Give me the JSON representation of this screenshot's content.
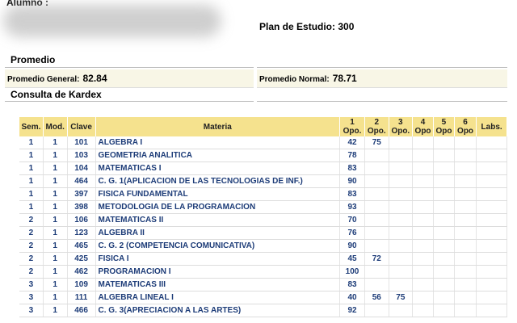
{
  "header": {
    "student_label": "Alumno :",
    "plan": "Plan de Estudio: 300"
  },
  "promedio": {
    "title": "Promedio",
    "general_label": "Promedio General:",
    "general_value": "82.84",
    "normal_label": "Promedio Normal:",
    "normal_value": "78.71"
  },
  "kardex": {
    "title": "Consulta de Kardex",
    "headers": [
      "Sem.",
      "Mod.",
      "Clave",
      "Materia",
      "1 Opo.",
      "2 Opo.",
      "3 Opo.",
      "4 Opo",
      "5 Opo",
      "6 Opo",
      "Labs."
    ],
    "rows": [
      {
        "sem": 1,
        "mod": 1,
        "clave": 101,
        "materia": "ALGEBRA I",
        "opos": [
          42,
          75
        ]
      },
      {
        "sem": 1,
        "mod": 1,
        "clave": 103,
        "materia": "GEOMETRIA ANALITICA",
        "opos": [
          78
        ]
      },
      {
        "sem": 1,
        "mod": 1,
        "clave": 104,
        "materia": "MATEMATICAS I",
        "opos": [
          83
        ]
      },
      {
        "sem": 1,
        "mod": 1,
        "clave": 464,
        "materia": "C. G. 1(APLICACION DE LAS TECNOLOGIAS DE INF.)",
        "opos": [
          90
        ]
      },
      {
        "sem": 1,
        "mod": 1,
        "clave": 397,
        "materia": "FISICA FUNDAMENTAL",
        "opos": [
          83
        ]
      },
      {
        "sem": 1,
        "mod": 1,
        "clave": 398,
        "materia": "METODOLOGIA DE LA PROGRAMACION",
        "opos": [
          93
        ]
      },
      {
        "sem": 2,
        "mod": 1,
        "clave": 106,
        "materia": "MATEMATICAS II",
        "opos": [
          70
        ]
      },
      {
        "sem": 2,
        "mod": 1,
        "clave": 123,
        "materia": "ALGEBRA II",
        "opos": [
          76
        ]
      },
      {
        "sem": 2,
        "mod": 1,
        "clave": 465,
        "materia": "C. G. 2 (COMPETENCIA COMUNICATIVA)",
        "opos": [
          90
        ]
      },
      {
        "sem": 2,
        "mod": 1,
        "clave": 425,
        "materia": "FISICA I",
        "opos": [
          45,
          72
        ]
      },
      {
        "sem": 2,
        "mod": 1,
        "clave": 462,
        "materia": "PROGRAMACION I",
        "opos": [
          100
        ]
      },
      {
        "sem": 3,
        "mod": 1,
        "clave": 109,
        "materia": "MATEMATICAS III",
        "opos": [
          83
        ]
      },
      {
        "sem": 3,
        "mod": 1,
        "clave": 111,
        "materia": "ALGEBRA LINEAL I",
        "opos": [
          40,
          56,
          75
        ]
      },
      {
        "sem": 3,
        "mod": 1,
        "clave": 466,
        "materia": "C. G. 3(APRECIACION A LAS ARTES)",
        "opos": [
          92
        ]
      }
    ]
  }
}
